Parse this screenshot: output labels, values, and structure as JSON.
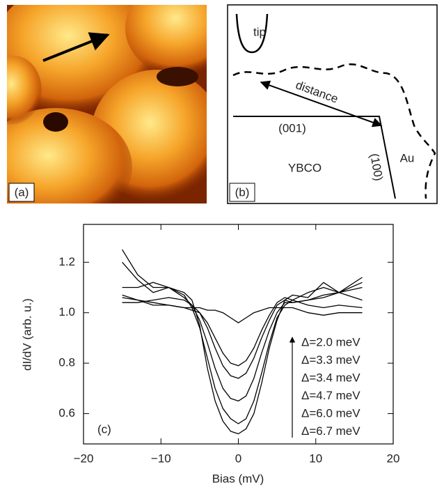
{
  "panel_a": {
    "label": "(a)"
  },
  "panel_b": {
    "label": "(b)",
    "tip": "tip",
    "distance": "distance",
    "face_001": "(001)",
    "face_100": "(100)",
    "ybco": "YBCO",
    "au": "Au"
  },
  "chart_data": {
    "type": "line",
    "panel_label": "(c)",
    "x_label": "Bias (mV)",
    "y_label": "dI/dV (arb. u.)",
    "x": [
      -15,
      -13,
      -11,
      -9,
      -7,
      -6,
      -5,
      -4,
      -3,
      -2,
      -1,
      0,
      1,
      2,
      3,
      4,
      5,
      6,
      7,
      9,
      11,
      13,
      16
    ],
    "series": [
      {
        "name": "Δ=2.0 meV",
        "color": "#000000",
        "values": [
          1.07,
          1.05,
          1.03,
          1.03,
          1.02,
          1.02,
          1.02,
          1.01,
          1.01,
          1.0,
          0.98,
          0.96,
          0.98,
          1.0,
          1.01,
          1.02,
          1.02,
          1.02,
          1.02,
          1.0,
          0.99,
          1.0,
          1.0
        ]
      },
      {
        "name": "Δ=3.3 meV",
        "color": "#000000",
        "values": [
          1.06,
          1.05,
          1.04,
          1.03,
          1.02,
          1.01,
          1.0,
          0.96,
          0.9,
          0.84,
          0.8,
          0.79,
          0.81,
          0.86,
          0.93,
          0.99,
          1.04,
          1.06,
          1.05,
          1.03,
          1.02,
          1.03,
          1.02
        ]
      },
      {
        "name": "Δ=3.4 meV",
        "color": "#000000",
        "values": [
          1.04,
          1.04,
          1.05,
          1.06,
          1.05,
          1.03,
          1.0,
          0.94,
          0.86,
          0.79,
          0.75,
          0.74,
          0.76,
          0.82,
          0.9,
          0.97,
          1.03,
          1.05,
          1.04,
          1.05,
          1.07,
          1.08,
          1.1
        ]
      },
      {
        "name": "Δ=4.7 meV",
        "color": "#000000",
        "values": [
          1.1,
          1.1,
          1.12,
          1.1,
          1.06,
          1.03,
          0.97,
          0.88,
          0.78,
          0.7,
          0.66,
          0.65,
          0.67,
          0.74,
          0.84,
          0.93,
          1.0,
          1.04,
          1.04,
          1.05,
          1.06,
          1.08,
          1.14
        ]
      },
      {
        "name": "Δ=6.0 meV",
        "color": "#000000",
        "values": [
          1.2,
          1.13,
          1.08,
          1.1,
          1.07,
          1.02,
          0.94,
          0.82,
          0.7,
          0.62,
          0.58,
          0.56,
          0.58,
          0.65,
          0.76,
          0.88,
          0.98,
          1.03,
          1.05,
          1.08,
          1.1,
          1.08,
          1.12
        ]
      },
      {
        "name": "Δ=6.7 meV",
        "color": "#000000",
        "values": [
          1.25,
          1.15,
          1.1,
          1.1,
          1.08,
          1.05,
          0.95,
          0.78,
          0.65,
          0.57,
          0.53,
          0.52,
          0.54,
          0.6,
          0.72,
          0.86,
          0.97,
          1.05,
          1.07,
          1.06,
          1.12,
          1.08,
          1.05
        ]
      }
    ],
    "xlim": [
      -20,
      20
    ],
    "xticks": [
      {
        "value": -20,
        "label": "−20"
      },
      {
        "value": -10,
        "label": "−10"
      },
      0,
      10,
      20
    ],
    "ylim": [
      0.48,
      1.35
    ],
    "yticks": [
      0.6,
      0.8,
      {
        "value": 1,
        "label": "1.0"
      },
      1.2
    ],
    "grid": false
  }
}
